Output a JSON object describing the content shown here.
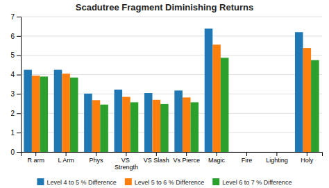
{
  "chart_data": {
    "type": "bar",
    "title": "Scadutree Fragment Diminishing Returns",
    "categories": [
      "R arm",
      "L Arm",
      "Phys",
      "VS\nStrength",
      "VS Slash",
      "Vs Pierce",
      "Magic",
      "Fire",
      "Lighting",
      "Holy"
    ],
    "series": [
      {
        "name": "Level 4 to 5 % Difference",
        "values": [
          4.25,
          4.25,
          3.02,
          3.22,
          3.05,
          3.18,
          6.38,
          0,
          0,
          6.2
        ]
      },
      {
        "name": "Level 5 to 6 % Difference",
        "values": [
          3.95,
          4.05,
          2.68,
          2.85,
          2.7,
          2.82,
          5.55,
          0,
          0,
          5.38
        ]
      },
      {
        "name": "Level 6 to 7 % Difference",
        "values": [
          3.9,
          3.85,
          2.45,
          2.57,
          2.48,
          2.57,
          4.87,
          0,
          0,
          4.75
        ]
      }
    ],
    "ylim": [
      0,
      7
    ],
    "yticks": [
      0,
      1,
      2,
      3,
      4,
      5,
      6,
      7
    ],
    "grid": true,
    "legend": "bottom"
  }
}
